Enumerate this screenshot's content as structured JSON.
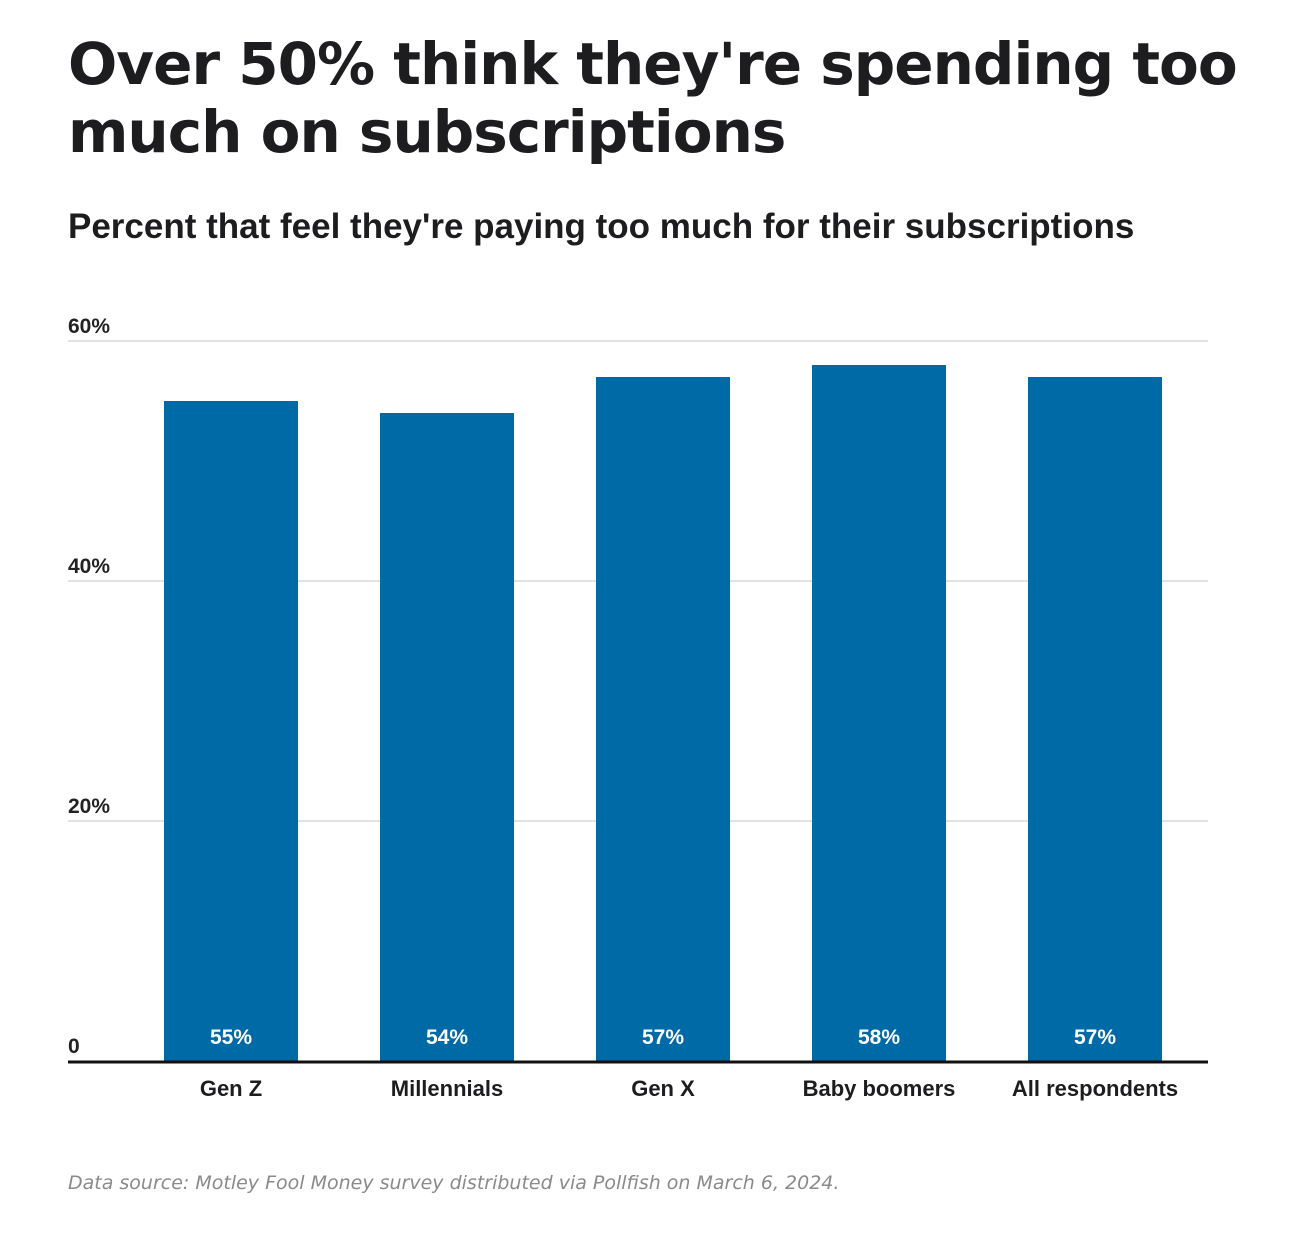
{
  "header": {
    "title": "Over 50% think they're spending too much on subscriptions",
    "subtitle": "Percent that feel they're paying too much for their subscriptions"
  },
  "footer": {
    "source": "Data source: Motley Fool Money survey distributed via Pollfish on March 6, 2024."
  },
  "chart_data": {
    "type": "bar",
    "categories": [
      "Gen Z",
      "Millennials",
      "Gen X",
      "Baby boomers",
      "All respondents"
    ],
    "values": [
      55,
      54,
      57,
      58,
      57
    ],
    "value_labels": [
      "55%",
      "54%",
      "57%",
      "58%",
      "57%"
    ],
    "y_ticks": [
      0,
      20,
      40,
      60
    ],
    "y_tick_labels": [
      "0",
      "20%",
      "40%",
      "60%"
    ],
    "ylim": [
      0,
      60
    ],
    "grid": true,
    "bar_color": "#006aa7",
    "grid_color": "#d9d9d9",
    "axis_color": "#111111"
  }
}
